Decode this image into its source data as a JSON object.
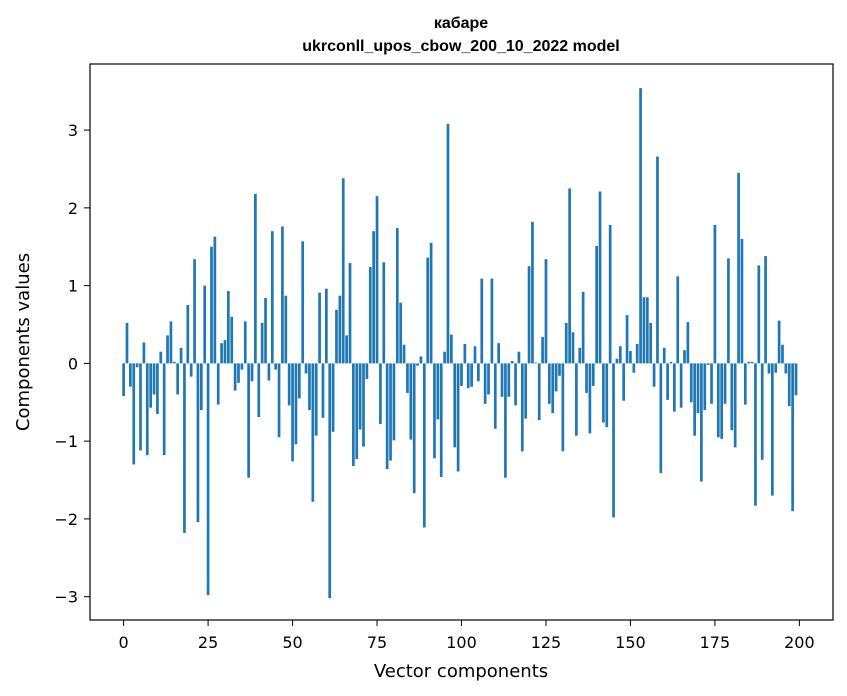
{
  "chart_data": {
    "type": "bar",
    "title": "кабаре",
    "subtitle": "ukrconll_upos_cbow_200_10_2022 model",
    "xlabel": "Vector components",
    "ylabel": "Components values",
    "xlim": [
      -9.95,
      209.95
    ],
    "ylim": [
      -3.3,
      3.85
    ],
    "xticks": [
      0,
      25,
      50,
      75,
      100,
      125,
      150,
      175,
      200
    ],
    "yticks": [
      -3,
      -2,
      -1,
      0,
      1,
      2,
      3
    ],
    "xtick_labels": [
      "0",
      "25",
      "50",
      "75",
      "100",
      "125",
      "150",
      "175",
      "200"
    ],
    "ytick_labels": [
      "−3",
      "−2",
      "−1",
      "0",
      "1",
      "2",
      "3"
    ],
    "grid": false,
    "bar_color": "#1f77b4",
    "x": [
      0,
      1,
      2,
      3,
      4,
      5,
      6,
      7,
      8,
      9,
      10,
      11,
      12,
      13,
      14,
      15,
      16,
      17,
      18,
      19,
      20,
      21,
      22,
      23,
      24,
      25,
      26,
      27,
      28,
      29,
      30,
      31,
      32,
      33,
      34,
      35,
      36,
      37,
      38,
      39,
      40,
      41,
      42,
      43,
      44,
      45,
      46,
      47,
      48,
      49,
      50,
      51,
      52,
      53,
      54,
      55,
      56,
      57,
      58,
      59,
      60,
      61,
      62,
      63,
      64,
      65,
      66,
      67,
      68,
      69,
      70,
      71,
      72,
      73,
      74,
      75,
      76,
      77,
      78,
      79,
      80,
      81,
      82,
      83,
      84,
      85,
      86,
      87,
      88,
      89,
      90,
      91,
      92,
      93,
      94,
      95,
      96,
      97,
      98,
      99,
      100,
      101,
      102,
      103,
      104,
      105,
      106,
      107,
      108,
      109,
      110,
      111,
      112,
      113,
      114,
      115,
      116,
      117,
      118,
      119,
      120,
      121,
      122,
      123,
      124,
      125,
      126,
      127,
      128,
      129,
      130,
      131,
      132,
      133,
      134,
      135,
      136,
      137,
      138,
      139,
      140,
      141,
      142,
      143,
      144,
      145,
      146,
      147,
      148,
      149,
      150,
      151,
      152,
      153,
      154,
      155,
      156,
      157,
      158,
      159,
      160,
      161,
      162,
      163,
      164,
      165,
      166,
      167,
      168,
      169,
      170,
      171,
      172,
      173,
      174,
      175,
      176,
      177,
      178,
      179,
      180,
      181,
      182,
      183,
      184,
      185,
      186,
      187,
      188,
      189,
      190,
      191,
      192,
      193,
      194,
      195,
      196,
      197,
      198,
      199
    ],
    "values": [
      -0.42,
      0.52,
      -0.3,
      -1.3,
      -0.05,
      -1.12,
      0.27,
      -1.18,
      -0.57,
      -0.4,
      -0.65,
      0.15,
      -1.18,
      0.36,
      0.54,
      0.02,
      -0.4,
      0.2,
      -2.18,
      0.75,
      -0.17,
      1.34,
      -2.04,
      -0.6,
      1.0,
      -2.98,
      1.5,
      1.63,
      -0.53,
      0.26,
      0.3,
      0.93,
      0.6,
      -0.35,
      -0.25,
      -0.08,
      0.54,
      -1.47,
      -0.23,
      2.18,
      -0.69,
      0.52,
      0.84,
      -0.22,
      1.7,
      -0.08,
      -0.95,
      1.76,
      0.87,
      -0.54,
      -1.26,
      -1.04,
      -0.45,
      1.57,
      -0.13,
      -0.6,
      -1.78,
      -0.93,
      0.91,
      -0.7,
      0.96,
      -3.02,
      -0.88,
      0.69,
      0.87,
      2.38,
      0.36,
      1.29,
      -1.32,
      -1.23,
      -0.85,
      -1.07,
      -0.2,
      1.24,
      1.7,
      2.15,
      -0.78,
      1.3,
      -1.36,
      -1.25,
      -0.99,
      1.74,
      0.78,
      0.24,
      -0.38,
      -0.98,
      -1.67,
      -0.03,
      0.09,
      -2.11,
      1.36,
      1.55,
      -1.22,
      -0.72,
      -1.46,
      0.15,
      3.08,
      0.37,
      -1.08,
      -1.39,
      -0.29,
      0.25,
      -0.32,
      -0.3,
      0.22,
      -0.23,
      1.09,
      -0.52,
      -0.4,
      1.09,
      -0.84,
      0.26,
      -0.43,
      -1.47,
      -0.43,
      0.03,
      -0.54,
      0.15,
      -1.13,
      -0.71,
      1.25,
      1.82,
      0.01,
      -0.73,
      0.34,
      1.34,
      -0.52,
      -0.64,
      -0.36,
      -0.16,
      -1.13,
      0.52,
      2.25,
      0.4,
      -0.93,
      0.2,
      0.92,
      -0.38,
      -0.9,
      -0.29,
      1.51,
      2.21,
      -0.76,
      -0.82,
      1.78,
      -1.98,
      0.06,
      0.22,
      -0.48,
      0.62,
      0.16,
      -0.12,
      0.25,
      3.54,
      0.85,
      0.85,
      0.52,
      -0.3,
      2.66,
      -1.41,
      0.2,
      -0.47,
      0.02,
      -0.62,
      1.12,
      -0.57,
      0.17,
      0.53,
      -0.5,
      -0.93,
      -0.64,
      -1.52,
      -0.6,
      -0.02,
      -0.52,
      1.78,
      -0.95,
      -0.97,
      -0.52,
      1.35,
      -0.86,
      -1.08,
      2.45,
      1.6,
      -0.53,
      0.02,
      0.02,
      -1.83,
      1.26,
      -1.24,
      1.38,
      -0.13,
      -1.7,
      -0.12,
      0.55,
      0.24,
      -0.13,
      -0.55,
      -1.9,
      -0.41
    ]
  }
}
